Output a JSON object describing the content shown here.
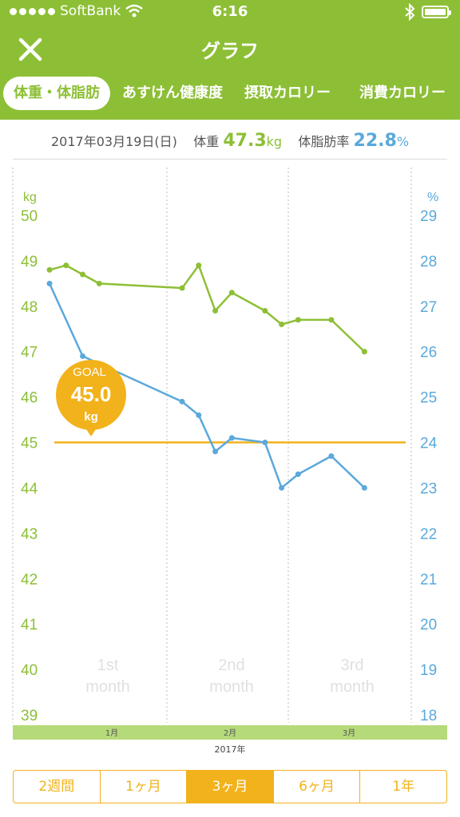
{
  "status": {
    "carrier": "SoftBank",
    "time": "6:16"
  },
  "nav": {
    "title": "グラフ"
  },
  "tabs": [
    "体重・体脂肪",
    "あすけん健康度",
    "摂取カロリー",
    "消費カロリー"
  ],
  "info": {
    "date": "2017年03月19日(日)",
    "weight_label": "体重",
    "weight_value": "47.3",
    "weight_unit": "kg",
    "fat_label": "体脂肪率",
    "fat_value": "22.8",
    "fat_unit": "%"
  },
  "goal": {
    "label": "GOAL",
    "value": "45.0",
    "unit": "kg"
  },
  "ranges": [
    "2週間",
    "1ヶ月",
    "3ヶ月",
    "6ヶ月",
    "1年"
  ],
  "colors": {
    "weight": "#8dbf36",
    "fat": "#5aa9dc",
    "goal": "#f2b21b"
  },
  "chart_data": {
    "type": "line",
    "y_left_label": "kg",
    "y_right_label": "%",
    "ylim_left": [
      39,
      50
    ],
    "ylim_right": [
      18,
      29
    ],
    "y_left_ticks": [
      "50",
      "49",
      "48",
      "47",
      "46",
      "45",
      "44",
      "43",
      "42",
      "41",
      "40",
      "39"
    ],
    "y_right_ticks": [
      "29",
      "28",
      "27",
      "26",
      "25",
      "24",
      "23",
      "22",
      "21",
      "20",
      "19",
      "18"
    ],
    "month_watermarks": [
      {
        "line1": "1st",
        "line2": "month"
      },
      {
        "line1": "2nd",
        "line2": "month"
      },
      {
        "line1": "3rd",
        "line2": "month"
      }
    ],
    "x_month_labels": [
      "1月",
      "2月",
      "3月"
    ],
    "x_year_label": "2017年",
    "xlim_days": [
      0,
      90
    ],
    "goal_weight": 45.0,
    "series": [
      {
        "color": "#8dbf36",
        "axis": "left",
        "points": [
          [
            0,
            48.8
          ],
          [
            4,
            48.9
          ],
          [
            8,
            48.7
          ],
          [
            12,
            48.5
          ],
          [
            32,
            48.4
          ],
          [
            36,
            48.9
          ],
          [
            40,
            47.9
          ],
          [
            44,
            48.3
          ],
          [
            52,
            47.9
          ],
          [
            56,
            47.6
          ],
          [
            60,
            47.7
          ],
          [
            68,
            47.7
          ],
          [
            76,
            47.0
          ]
        ]
      },
      {
        "color": "#5aa9dc",
        "axis": "right",
        "points": [
          [
            0,
            27.5
          ],
          [
            8,
            25.9
          ],
          [
            32,
            24.9
          ],
          [
            36,
            24.6
          ],
          [
            40,
            23.8
          ],
          [
            44,
            24.1
          ],
          [
            52,
            24.0
          ],
          [
            56,
            23.0
          ],
          [
            60,
            23.3
          ],
          [
            68,
            23.7
          ],
          [
            76,
            23.0
          ]
        ]
      }
    ]
  }
}
